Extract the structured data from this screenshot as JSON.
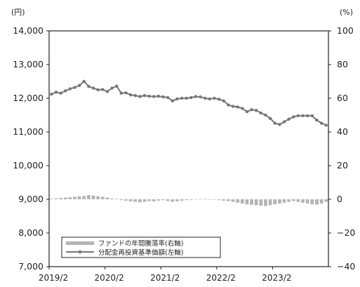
{
  "chart_data": {
    "type": "line",
    "left_axis": {
      "unit": "(円)",
      "ylim": [
        7000,
        14000
      ],
      "ticks": [
        7000,
        8000,
        9000,
        10000,
        11000,
        12000,
        13000,
        14000
      ],
      "tick_labels": [
        "7,000",
        "8,000",
        "9,000",
        "10,000",
        "11,000",
        "12,000",
        "13,000",
        "14,000"
      ]
    },
    "right_axis": {
      "unit": "(%)",
      "ylim": [
        -40,
        100
      ],
      "ticks": [
        -40,
        -20,
        0,
        20,
        40,
        60,
        80,
        100
      ],
      "tick_labels": [
        "−40",
        "−20",
        "0",
        "20",
        "40",
        "60",
        "80",
        "100"
      ]
    },
    "x_ticks": [
      "2019/2",
      "2020/2",
      "2021/2",
      "2022/2",
      "2023/2"
    ],
    "n_months": 60,
    "legend": {
      "placement": "bottom-left",
      "entries": [
        "ファンドの年間騰落率(右軸)",
        "分配金再投資基準価額(左軸)"
      ]
    },
    "series": [
      {
        "name": "分配金再投資基準価額(左軸)",
        "kind": "line",
        "axis": "left",
        "color": "#777777",
        "values": [
          12120,
          12180,
          12150,
          12220,
          12280,
          12320,
          12380,
          12500,
          12350,
          12300,
          12250,
          12260,
          12200,
          12300,
          12360,
          12150,
          12160,
          12100,
          12080,
          12050,
          12080,
          12060,
          12050,
          12060,
          12040,
          12020,
          11920,
          11980,
          12000,
          12000,
          12020,
          12050,
          12040,
          12000,
          11980,
          12000,
          11970,
          11920,
          11800,
          11760,
          11740,
          11700,
          11600,
          11660,
          11640,
          11560,
          11500,
          11400,
          11260,
          11220,
          11300,
          11380,
          11450,
          11480,
          11480,
          11480,
          11480,
          11350,
          11260,
          11200
        ]
      },
      {
        "name": "ファンドの年間騰落率(右軸)",
        "kind": "bar",
        "axis": "right",
        "color": "#b4b4b4",
        "values": [
          0.3,
          0.5,
          0.8,
          1.0,
          1.2,
          1.5,
          1.8,
          2.0,
          2.5,
          2.2,
          1.8,
          1.5,
          1.0,
          0.5,
          0.3,
          -0.5,
          -0.8,
          -1.2,
          -1.5,
          -1.8,
          -1.5,
          -1.0,
          -1.2,
          -0.8,
          -0.5,
          -1.0,
          -1.5,
          -1.2,
          -0.8,
          -0.5,
          -0.3,
          -0.2,
          0.2,
          0.3,
          0.1,
          -0.2,
          -0.5,
          -0.8,
          -1.0,
          -1.5,
          -2.0,
          -2.5,
          -3.0,
          -3.2,
          -3.5,
          -3.8,
          -4.0,
          -3.5,
          -3.0,
          -2.5,
          -2.0,
          -1.5,
          -1.0,
          -1.5,
          -2.0,
          -2.5,
          -3.0,
          -3.2,
          -2.5,
          -1.5
        ]
      }
    ]
  }
}
